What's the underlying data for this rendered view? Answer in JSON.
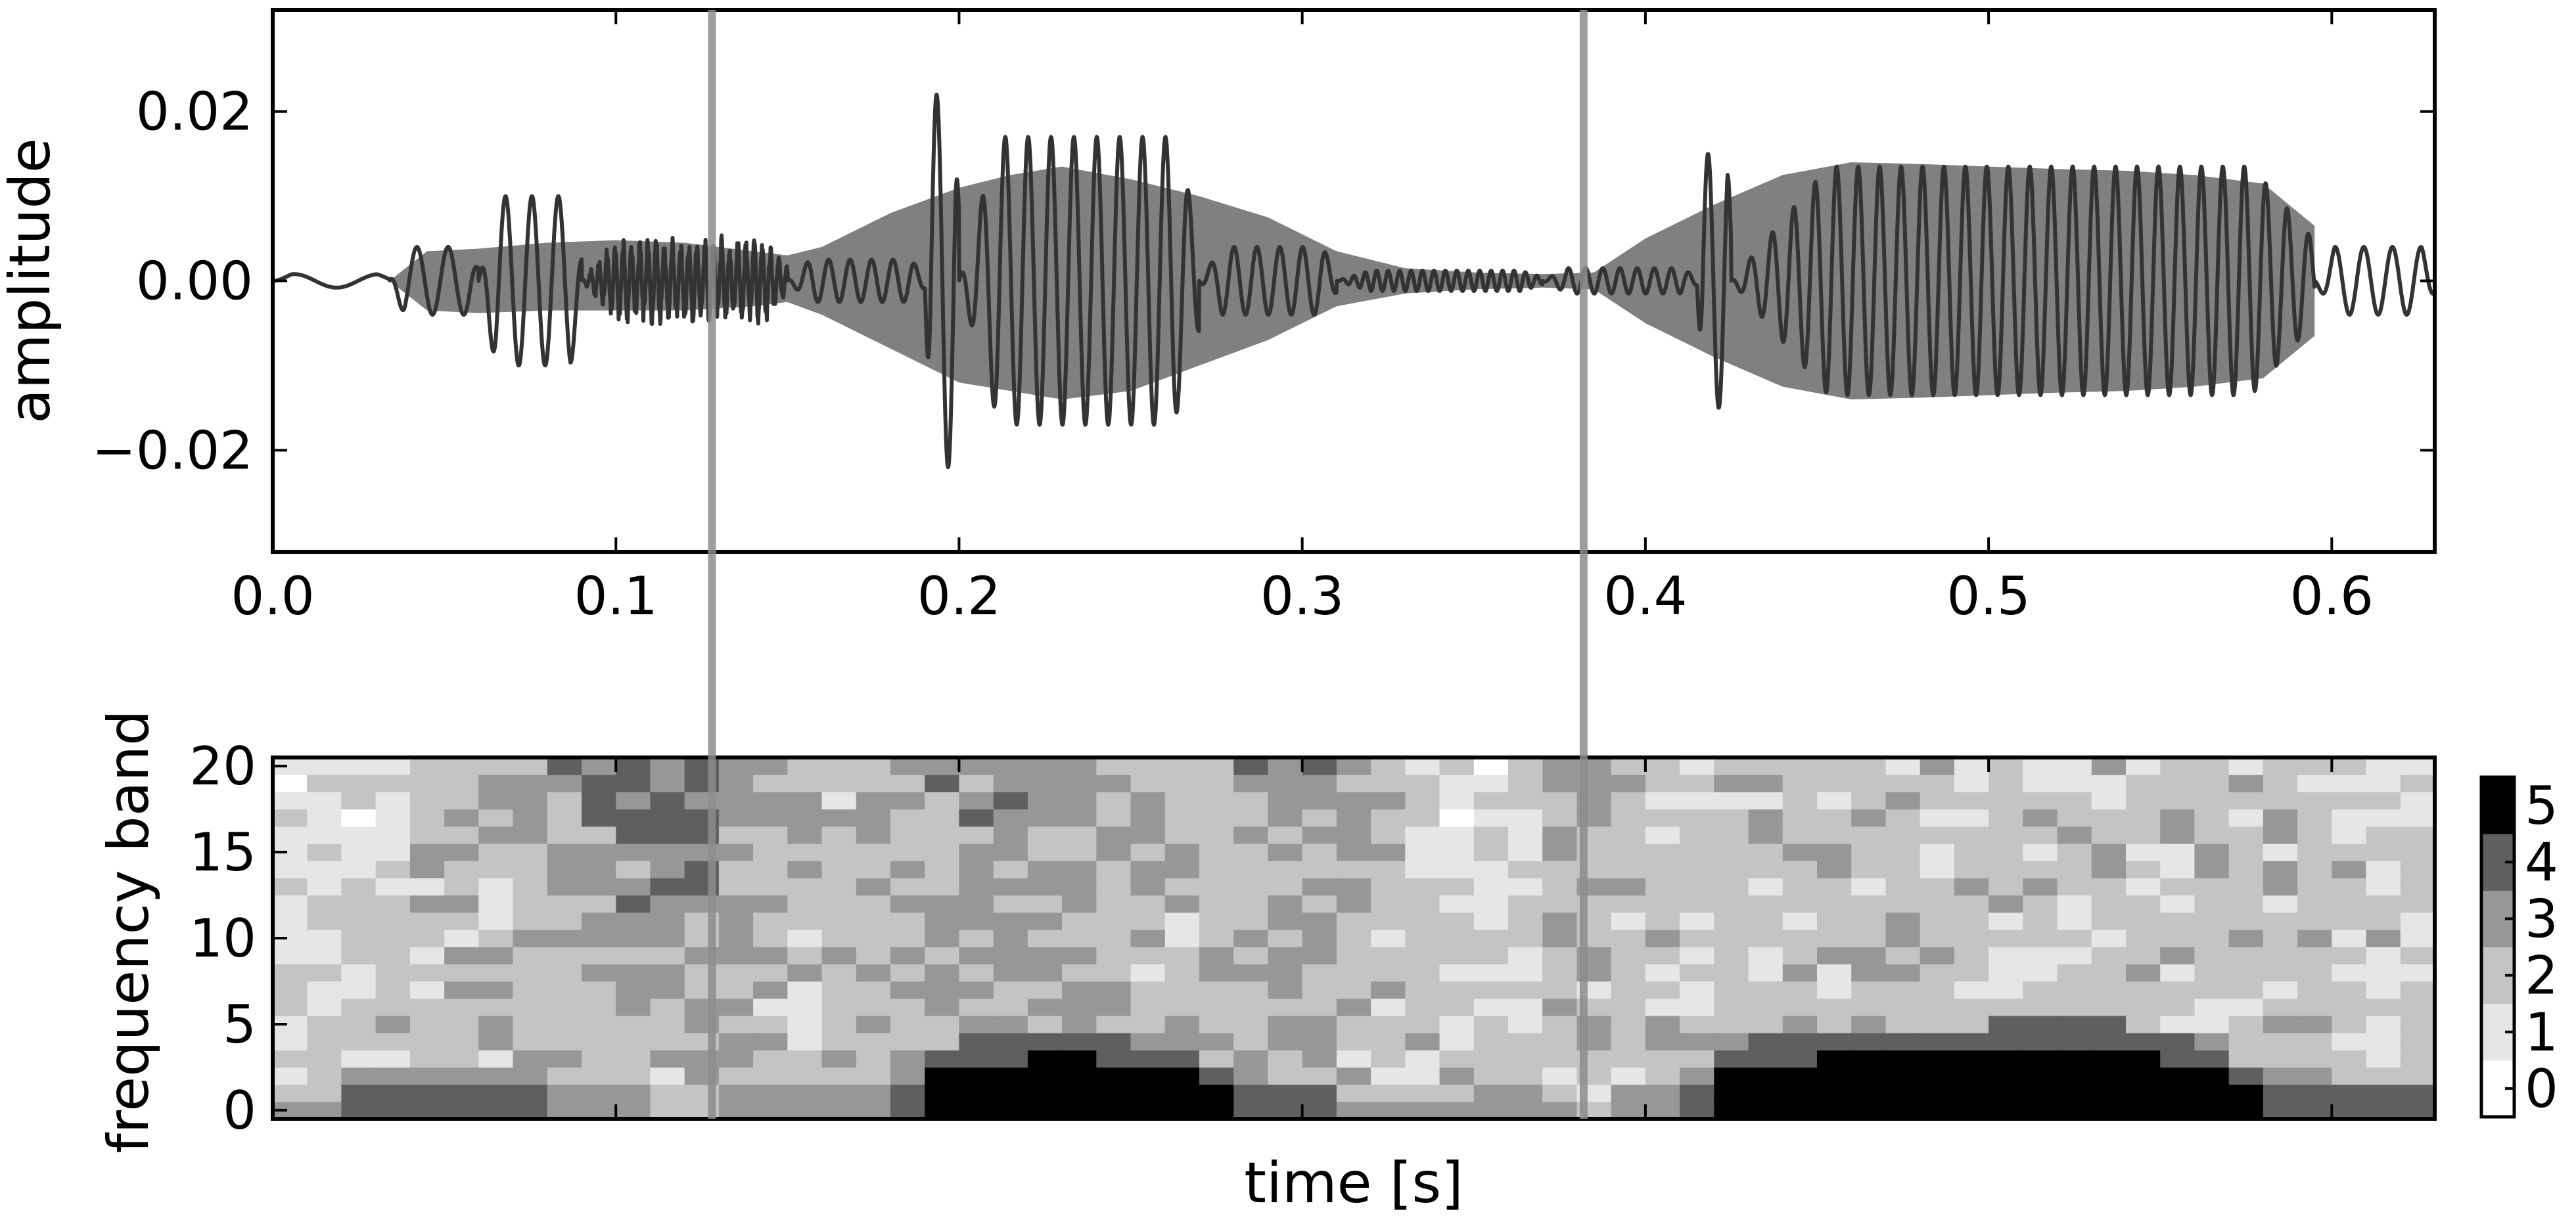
{
  "chart_data": [
    {
      "type": "line",
      "description_series": [
        {
          "name": "",
          "color": "#333333",
          "kind": "waveform"
        },
        {
          "name": "",
          "color": "#808080",
          "kind": "envelope-band"
        }
      ],
      "ylabel": "amplitude",
      "xlabel": "",
      "xlim": [
        0.0,
        0.63
      ],
      "ylim": [
        -0.032,
        0.032
      ],
      "xticks": [
        "0.0",
        "0.1",
        "0.2",
        "0.3",
        "0.4",
        "0.5",
        "0.6"
      ],
      "xtick_values": [
        0.0,
        0.1,
        0.2,
        0.3,
        0.4,
        0.5,
        0.6
      ],
      "yticks": [
        "0.02",
        "0.00",
        "−0.02"
      ],
      "ytick_values": [
        0.02,
        0.0,
        -0.02
      ],
      "envelope": {
        "t": [
          0.034,
          0.045,
          0.06,
          0.08,
          0.1,
          0.12,
          0.14,
          0.15,
          0.16,
          0.18,
          0.2,
          0.215,
          0.23,
          0.25,
          0.27,
          0.29,
          0.31,
          0.33,
          0.35,
          0.37,
          0.385,
          0.4,
          0.42,
          0.44,
          0.46,
          0.48,
          0.5,
          0.52,
          0.54,
          0.56,
          0.58,
          0.595
        ],
        "upper": [
          0.0,
          0.0035,
          0.0038,
          0.0045,
          0.0048,
          0.0045,
          0.0035,
          0.003,
          0.004,
          0.008,
          0.011,
          0.0125,
          0.0135,
          0.012,
          0.01,
          0.0075,
          0.0035,
          0.0015,
          0.001,
          0.0008,
          0.001,
          0.005,
          0.009,
          0.0125,
          0.014,
          0.0138,
          0.0135,
          0.0132,
          0.013,
          0.0125,
          0.0115,
          0.0065
        ],
        "lower": [
          0.0,
          -0.0035,
          -0.0038,
          -0.0035,
          -0.0035,
          -0.0035,
          -0.003,
          -0.0025,
          -0.004,
          -0.008,
          -0.012,
          -0.013,
          -0.014,
          -0.013,
          -0.01,
          -0.007,
          -0.003,
          -0.0015,
          -0.001,
          -0.0008,
          -0.001,
          -0.005,
          -0.009,
          -0.0125,
          -0.014,
          -0.0138,
          -0.0135,
          -0.0132,
          -0.013,
          -0.0125,
          -0.0115,
          -0.0065
        ]
      },
      "waveform_segments": [
        {
          "t0": 0.0,
          "t1": 0.034,
          "amp": 0.0008,
          "freq": 40
        },
        {
          "t0": 0.034,
          "t1": 0.06,
          "amp": 0.004,
          "freq": 110
        },
        {
          "t0": 0.06,
          "t1": 0.09,
          "amp": 0.01,
          "freq": 130
        },
        {
          "t0": 0.09,
          "t1": 0.15,
          "amp": 0.0045,
          "freq": 420
        },
        {
          "t0": 0.15,
          "t1": 0.19,
          "amp": 0.0025,
          "freq": 160
        },
        {
          "t0": 0.19,
          "t1": 0.2,
          "amp": 0.022,
          "freq": 150
        },
        {
          "t0": 0.2,
          "t1": 0.27,
          "amp": 0.017,
          "freq": 150
        },
        {
          "t0": 0.27,
          "t1": 0.31,
          "amp": 0.004,
          "freq": 150
        },
        {
          "t0": 0.31,
          "t1": 0.37,
          "amp": 0.0012,
          "freq": 300
        },
        {
          "t0": 0.37,
          "t1": 0.415,
          "amp": 0.0015,
          "freq": 200
        },
        {
          "t0": 0.415,
          "t1": 0.425,
          "amp": 0.015,
          "freq": 160
        },
        {
          "t0": 0.425,
          "t1": 0.595,
          "amp": 0.0135,
          "freq": 160
        },
        {
          "t0": 0.595,
          "t1": 0.63,
          "amp": 0.004,
          "freq": 120
        }
      ],
      "markers_x": [
        0.128,
        0.382
      ],
      "grid": false
    },
    {
      "type": "heatmap",
      "xlabel": "time [s]",
      "ylabel": "frequency band",
      "xlim": [
        0.0,
        0.63
      ],
      "ylim": [
        -0.5,
        20.5
      ],
      "yticks": [
        "0",
        "5",
        "10",
        "15",
        "20"
      ],
      "ytick_values": [
        0,
        5,
        10,
        15,
        20
      ],
      "n_time_bins": 63,
      "n_bands": 21,
      "colorbar": {
        "min": 0,
        "max": 5,
        "ticks": [
          "0",
          "1",
          "2",
          "3",
          "4",
          "5"
        ],
        "tick_values": [
          0,
          1,
          2,
          3,
          4,
          5
        ],
        "colormap": "gray_r"
      },
      "low_band_profile": {
        "t": [
          0.0,
          0.04,
          0.06,
          0.1,
          0.125,
          0.135,
          0.17,
          0.19,
          0.2,
          0.23,
          0.27,
          0.29,
          0.33,
          0.37,
          0.38,
          0.41,
          0.43,
          0.46,
          0.5,
          0.53,
          0.57,
          0.6,
          0.63
        ],
        "max_level": [
          3,
          4,
          4,
          3,
          2,
          3,
          3,
          4,
          5,
          5,
          5,
          4,
          3,
          3,
          2,
          3,
          5,
          5,
          5,
          5,
          5,
          4,
          4
        ],
        "height": [
          1,
          2,
          3,
          3,
          2,
          2,
          2,
          3,
          4,
          5,
          3,
          2,
          1,
          2,
          1,
          2,
          4,
          5,
          5,
          6,
          3,
          2,
          2
        ]
      },
      "high_band_profile": {
        "t": [
          0.0,
          0.03,
          0.05,
          0.09,
          0.12,
          0.14,
          0.16,
          0.2,
          0.24,
          0.26,
          0.29,
          0.31,
          0.34,
          0.36,
          0.38,
          0.4,
          0.44,
          0.5,
          0.55,
          0.6,
          0.63
        ],
        "level": [
          1,
          1,
          2,
          3,
          4,
          3,
          2,
          3,
          3,
          2,
          3,
          3,
          1,
          1,
          3,
          2,
          2,
          2,
          2,
          2,
          1
        ]
      },
      "markers_x": [
        0.128,
        0.382
      ]
    }
  ]
}
